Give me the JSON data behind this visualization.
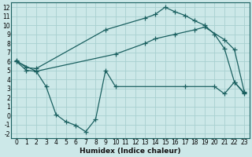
{
  "xlabel": "Humidex (Indice chaleur)",
  "bg_color": "#cce8e8",
  "grid_color": "#a8d0d0",
  "line_color": "#1a6060",
  "xlim": [
    -0.5,
    23.5
  ],
  "ylim": [
    -2.5,
    12.5
  ],
  "xticks": [
    0,
    1,
    2,
    3,
    4,
    5,
    6,
    7,
    8,
    9,
    10,
    11,
    12,
    13,
    14,
    15,
    16,
    17,
    18,
    19,
    20,
    21,
    22,
    23
  ],
  "yticks": [
    -2,
    -1,
    0,
    1,
    2,
    3,
    4,
    5,
    6,
    7,
    8,
    9,
    10,
    11,
    12
  ],
  "curve_upper_x": [
    0,
    1,
    2,
    9,
    13,
    14,
    15,
    16,
    17,
    18,
    19,
    20,
    21,
    22,
    23
  ],
  "curve_upper_y": [
    6.1,
    5.3,
    5.2,
    9.5,
    10.8,
    11.2,
    12.0,
    11.5,
    11.1,
    10.5,
    10.0,
    9.0,
    7.4,
    3.7,
    2.5
  ],
  "curve_mid_x": [
    0,
    1,
    2,
    10,
    13,
    14,
    16,
    18,
    19,
    21,
    22,
    23
  ],
  "curve_mid_y": [
    6.0,
    5.0,
    4.9,
    6.8,
    8.0,
    8.5,
    9.0,
    9.5,
    9.8,
    8.4,
    7.3,
    2.6
  ],
  "curve_lower_x": [
    0,
    2,
    3,
    4,
    5,
    6,
    7,
    8,
    9,
    10,
    17,
    20,
    21,
    22,
    23
  ],
  "curve_lower_y": [
    6.0,
    4.9,
    3.2,
    0.1,
    -0.7,
    -1.1,
    -1.8,
    -0.4,
    5.0,
    3.2,
    3.2,
    3.2,
    2.4,
    3.7,
    2.4
  ],
  "marker": "+",
  "markersize": 4,
  "markeredgewidth": 0.9,
  "linewidth": 0.9,
  "tick_fontsize": 5.5,
  "xlabel_fontsize": 6.5
}
